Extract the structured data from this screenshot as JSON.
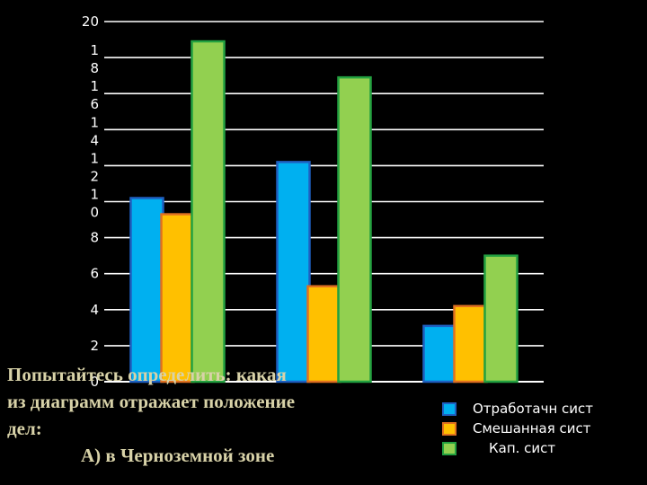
{
  "chart_data": {
    "type": "bar",
    "categories": [
      "",
      "",
      ""
    ],
    "series": [
      {
        "name": "Отработачн сист",
        "values": [
          10.2,
          12.2,
          3.1
        ],
        "color": "#00b0f0",
        "stroke": "#1f5fc0"
      },
      {
        "name": "Смешанная сист",
        "values": [
          9.3,
          5.3,
          4.2
        ],
        "color": "#ffc000",
        "stroke": "#e07020"
      },
      {
        "name": "Кап.  сист",
        "values": [
          18.9,
          16.9,
          7.0
        ],
        "color": "#92d050",
        "stroke": "#22a040"
      }
    ],
    "ylim": [
      0,
      20
    ],
    "ytick_labels": [
      {
        "value": 0,
        "lines": [
          "0"
        ]
      },
      {
        "value": 2,
        "lines": [
          "2"
        ]
      },
      {
        "value": 4,
        "lines": [
          "4"
        ]
      },
      {
        "value": 6,
        "lines": [
          "6"
        ]
      },
      {
        "value": 8,
        "lines": [
          "8"
        ]
      },
      {
        "value": 10,
        "lines": [
          "1",
          "0"
        ]
      },
      {
        "value": 12,
        "lines": [
          "1",
          "2"
        ]
      },
      {
        "value": 14,
        "lines": [
          "1",
          "4"
        ]
      },
      {
        "value": 16,
        "lines": [
          "1",
          "6"
        ]
      },
      {
        "value": 18,
        "lines": [
          "1",
          "8"
        ]
      },
      {
        "value": 20,
        "lines": [
          "20"
        ]
      }
    ],
    "grid": true,
    "legend": "bottom-right"
  },
  "caption": {
    "line1": "Попытайтесь определить: какая",
    "line2": "из диаграмм отражает положение",
    "line3": "дел:",
    "line4": "А) в Черноземной зоне"
  }
}
